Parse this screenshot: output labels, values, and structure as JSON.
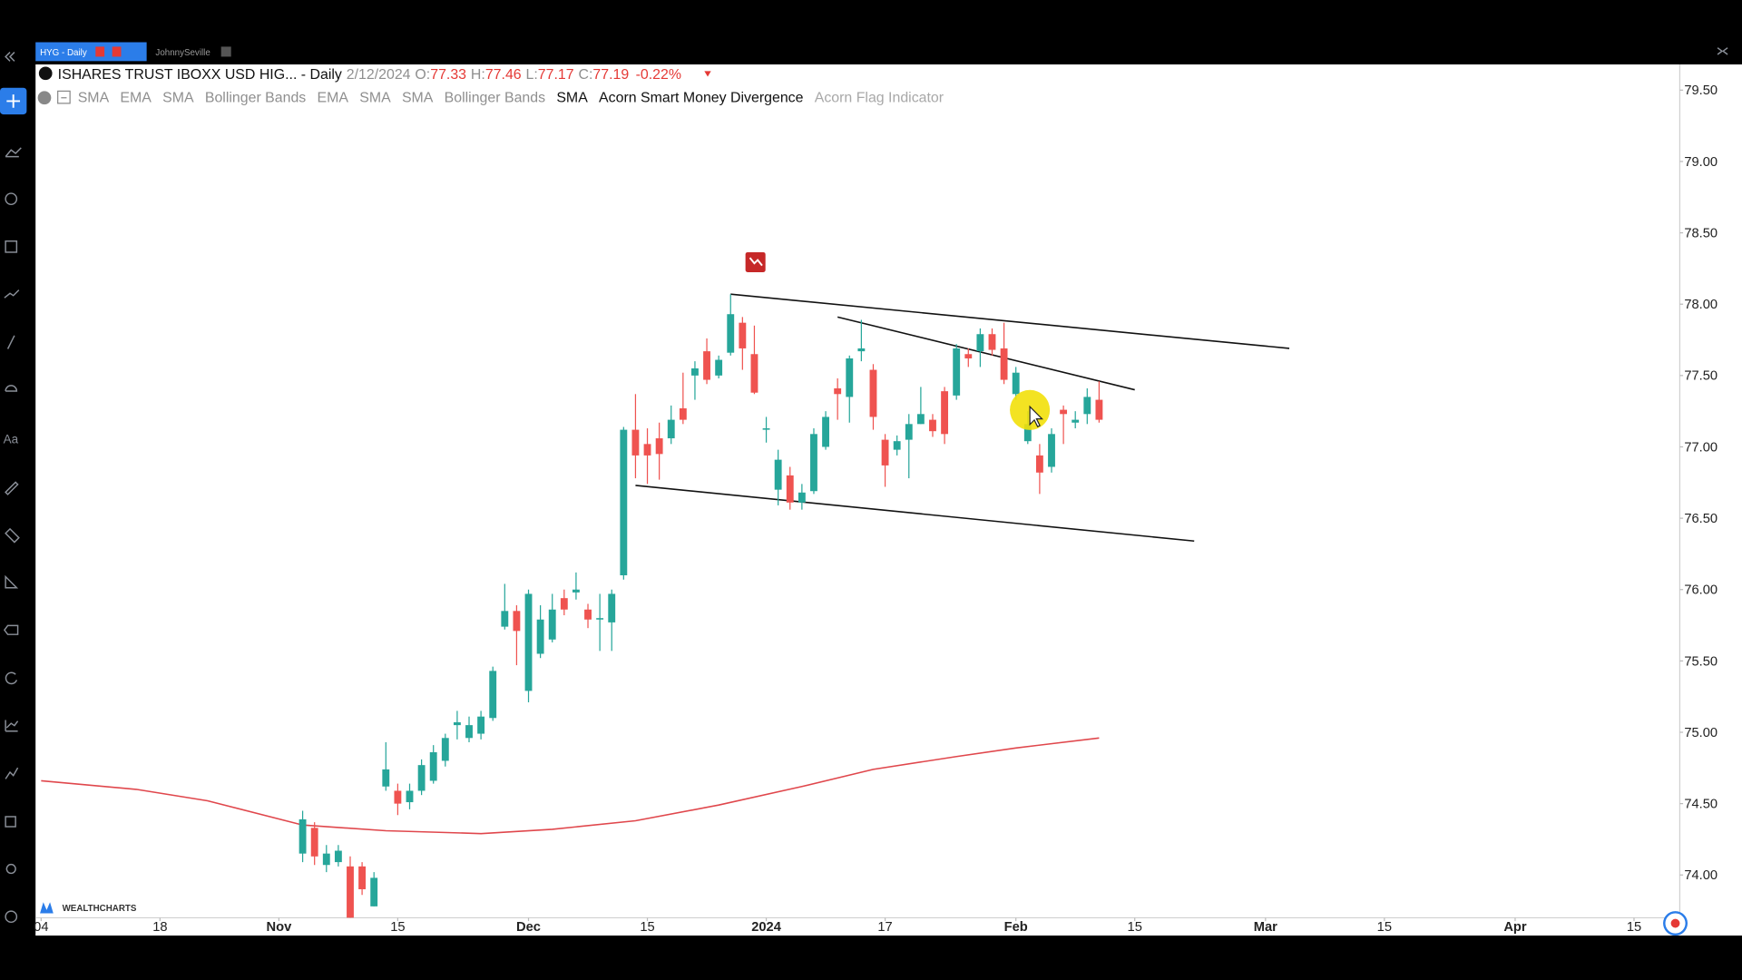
{
  "tabs": [
    "HYG - Daily",
    "JohnnySeville"
  ],
  "legend": {
    "name": "ISHARES TRUST IBOXX USD HIG... - Daily",
    "date": "2/12/2024",
    "ohlc": [
      {
        "label": "O:",
        "value": "77.33"
      },
      {
        "label": "H:",
        "value": "77.46"
      },
      {
        "label": "L:",
        "value": "77.17"
      },
      {
        "label": "C:",
        "value": "77.19"
      }
    ],
    "change": "-0.22%"
  },
  "indicators": [
    {
      "name": "SMA",
      "color": "#8f8f8f"
    },
    {
      "name": "EMA",
      "color": "#8f8f8f"
    },
    {
      "name": "SMA",
      "color": "#8f8f8f"
    },
    {
      "name": "Bollinger Bands",
      "color": "#8f8f8f"
    },
    {
      "name": "EMA",
      "color": "#8f8f8f"
    },
    {
      "name": "SMA",
      "color": "#8f8f8f"
    },
    {
      "name": "SMA",
      "color": "#8f8f8f"
    },
    {
      "name": "Bollinger Bands",
      "color": "#8f8f8f"
    },
    {
      "name": "SMA",
      "color": "#111111"
    },
    {
      "name": "Acorn Smart Money Divergence",
      "color": "#111111"
    },
    {
      "name": "Acorn Flag Indicator",
      "color": "#a8a8a8"
    }
  ],
  "toolbar_label": "Aa",
  "brand": "WEALTHCHARTS",
  "chart_data": {
    "type": "candlestick",
    "xlim": [
      -20.47,
      117.85
    ],
    "ylim": [
      73.7,
      79.68
    ],
    "xticks": [
      {
        "value": -20,
        "label": "04"
      },
      {
        "value": -10,
        "label": "18"
      },
      {
        "value": 0,
        "label": "Nov"
      },
      {
        "value": 10,
        "label": "15"
      },
      {
        "value": 21,
        "label": "Dec"
      },
      {
        "value": 31,
        "label": "15"
      },
      {
        "value": 41,
        "label": "2024"
      },
      {
        "value": 51,
        "label": "17"
      },
      {
        "value": 62,
        "label": "Feb"
      },
      {
        "value": 72,
        "label": "15"
      },
      {
        "value": 83,
        "label": "Mar"
      },
      {
        "value": 93,
        "label": "15"
      },
      {
        "value": 104,
        "label": "Apr"
      },
      {
        "value": 114,
        "label": "15"
      }
    ],
    "yticks": [
      {
        "value": 74,
        "label": "74.00"
      },
      {
        "value": 74.5,
        "label": "74.50"
      },
      {
        "value": 75,
        "label": "75.00"
      },
      {
        "value": 75.5,
        "label": "75.50"
      },
      {
        "value": 76,
        "label": "76.00"
      },
      {
        "value": 76.5,
        "label": "76.50"
      },
      {
        "value": 77,
        "label": "77.00"
      },
      {
        "value": 77.5,
        "label": "77.50"
      },
      {
        "value": 78,
        "label": "78.00"
      },
      {
        "value": 78.5,
        "label": "78.50"
      },
      {
        "value": 79,
        "label": "79.00"
      },
      {
        "value": 79.5,
        "label": "79.50"
      }
    ],
    "up_color": "#26a69a",
    "down_color": "#ef5350",
    "x": [
      2,
      3,
      4,
      5,
      6,
      7,
      8,
      9,
      10,
      11,
      12,
      13,
      14,
      15,
      16,
      17,
      18,
      19,
      20,
      21,
      22,
      23,
      24,
      25,
      26,
      27,
      28,
      29,
      30,
      31,
      32,
      33,
      34,
      35,
      36,
      37,
      38,
      39,
      40,
      41,
      42,
      43,
      44,
      45,
      46,
      47,
      48,
      49,
      50,
      51,
      52,
      53,
      54,
      55,
      56,
      57,
      58,
      59,
      60,
      61,
      62,
      63,
      64,
      65,
      66,
      67,
      68,
      69
    ],
    "open": [
      74.15,
      74.33,
      74.07,
      74.09,
      74.06,
      74.06,
      73.78,
      74.62,
      74.59,
      74.51,
      74.59,
      74.66,
      74.8,
      75.05,
      74.96,
      74.99,
      75.1,
      75.74,
      75.85,
      75.29,
      75.55,
      75.65,
      75.94,
      75.98,
      75.86,
      75.79,
      75.77,
      76.1,
      77.12,
      77.02,
      77.06,
      77.06,
      77.27,
      77.5,
      77.67,
      77.5,
      77.66,
      77.87,
      77.65,
      77.12,
      76.7,
      76.8,
      76.61,
      76.69,
      77.0,
      77.41,
      77.35,
      77.67,
      77.54,
      77.05,
      76.98,
      77.05,
      77.16,
      77.19,
      77.39,
      77.36,
      77.65,
      77.67,
      77.79,
      77.69,
      77.37,
      77.04,
      76.94,
      76.86,
      77.26,
      77.17,
      77.23,
      77.33
    ],
    "high": [
      74.45,
      74.37,
      74.21,
      74.21,
      74.13,
      74.09,
      74.02,
      74.93,
      74.64,
      74.64,
      74.81,
      74.91,
      74.99,
      75.15,
      75.11,
      75.15,
      75.46,
      76.04,
      75.89,
      76.0,
      75.89,
      75.97,
      76.0,
      76.12,
      75.9,
      75.97,
      76.0,
      77.14,
      77.37,
      77.13,
      77.17,
      77.29,
      77.52,
      77.6,
      77.76,
      77.64,
      78.07,
      77.91,
      77.85,
      77.21,
      76.98,
      76.86,
      76.74,
      77.13,
      77.25,
      77.48,
      77.64,
      77.89,
      77.58,
      77.09,
      77.08,
      77.23,
      77.42,
      77.23,
      77.42,
      77.72,
      77.69,
      77.83,
      77.83,
      77.87,
      77.56,
      77.25,
      77.02,
      77.13,
      77.29,
      77.25,
      77.41,
      77.46
    ],
    "low": [
      74.09,
      74.07,
      74.02,
      74.06,
      73.67,
      73.86,
      73.78,
      74.59,
      74.42,
      74.46,
      74.56,
      74.64,
      74.76,
      74.95,
      74.93,
      74.95,
      75.08,
      75.72,
      75.47,
      75.21,
      75.52,
      75.63,
      75.82,
      75.93,
      75.73,
      75.57,
      75.57,
      76.07,
      76.78,
      76.74,
      76.77,
      77.02,
      77.16,
      77.33,
      77.44,
      77.48,
      77.64,
      77.54,
      77.37,
      77.03,
      76.59,
      76.56,
      76.56,
      76.67,
      76.98,
      77.19,
      77.17,
      77.6,
      77.12,
      76.72,
      76.94,
      76.78,
      77.16,
      77.07,
      77.02,
      77.33,
      77.56,
      77.56,
      77.64,
      77.44,
      77.33,
      77.02,
      76.67,
      76.82,
      77.02,
      77.13,
      77.16,
      77.17
    ],
    "close": [
      74.39,
      74.13,
      74.15,
      74.17,
      73.7,
      73.9,
      73.98,
      74.74,
      74.5,
      74.59,
      74.77,
      74.86,
      74.96,
      75.07,
      75.05,
      75.11,
      75.43,
      75.85,
      75.71,
      75.97,
      75.79,
      75.86,
      75.86,
      76.0,
      75.79,
      75.8,
      75.97,
      77.12,
      76.94,
      76.94,
      76.95,
      77.19,
      77.19,
      77.55,
      77.47,
      77.61,
      77.93,
      77.69,
      77.38,
      77.13,
      76.91,
      76.61,
      76.68,
      77.09,
      77.21,
      77.37,
      77.62,
      77.69,
      77.21,
      76.87,
      77.04,
      77.16,
      77.23,
      77.11,
      77.09,
      77.69,
      77.62,
      77.79,
      77.68,
      77.47,
      77.52,
      77.16,
      76.82,
      77.09,
      77.23,
      77.19,
      77.35,
      77.19
    ],
    "sma": {
      "color": "#e0474c",
      "x": [
        -20,
        -12,
        -6,
        2,
        9,
        17,
        23,
        30,
        37,
        44,
        50,
        57,
        62,
        69
      ],
      "values": [
        74.66,
        74.6,
        74.52,
        74.35,
        74.31,
        74.29,
        74.32,
        74.38,
        74.49,
        74.62,
        74.74,
        74.83,
        74.89,
        74.96
      ]
    },
    "trendlines": [
      {
        "x": [
          38,
          85
        ],
        "values": [
          78.07,
          77.69
        ]
      },
      {
        "x": [
          47,
          72
        ],
        "values": [
          77.91,
          77.4
        ]
      },
      {
        "x": [
          30,
          77
        ],
        "values": [
          76.73,
          76.34
        ]
      }
    ]
  }
}
